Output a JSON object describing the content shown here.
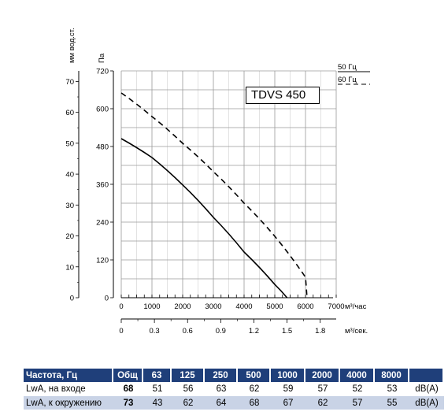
{
  "chart_data": {
    "type": "line",
    "title": "TDVS 450",
    "x_axis_primary": {
      "unit": "м³/час",
      "ticks": [
        "0",
        "1000",
        "2000",
        "3000",
        "4000",
        "5000",
        "6000",
        "7000"
      ],
      "range": [
        0,
        7000
      ]
    },
    "x_axis_secondary": {
      "unit": "м³/сек.",
      "ticks": [
        "0",
        "0.3",
        "0.6",
        "0.9",
        "1.2",
        "1.5",
        "1.8"
      ]
    },
    "y_axis_primary": {
      "unit": "Па",
      "ticks": [
        "0",
        "120",
        "240",
        "360",
        "480",
        "600",
        "720"
      ],
      "range": [
        0,
        720
      ]
    },
    "y_axis_secondary": {
      "unit": "мм вод.ст.",
      "ticks": [
        "0",
        "10",
        "20",
        "30",
        "40",
        "50",
        "60",
        "70"
      ]
    },
    "legend": [
      {
        "name": "50 Гц",
        "style": "solid"
      },
      {
        "name": "60 Гц",
        "style": "dashed"
      }
    ],
    "series": [
      {
        "name": "50 Гц",
        "style": "solid",
        "x": [
          0,
          1000,
          2000,
          3000,
          4000,
          5000,
          5400
        ],
        "y": [
          505,
          445,
          358,
          255,
          145,
          42,
          0
        ]
      },
      {
        "name": "60 Гц",
        "style": "dashed",
        "x": [
          0,
          1000,
          2000,
          3000,
          4000,
          5000,
          6000,
          6050
        ],
        "y": [
          650,
          575,
          490,
          400,
          300,
          195,
          65,
          0
        ]
      }
    ],
    "grid": true
  },
  "noise_table": {
    "header": [
      "Частота, Гц",
      "Общ",
      "63",
      "125",
      "250",
      "500",
      "1000",
      "2000",
      "4000",
      "8000",
      ""
    ],
    "rows": [
      {
        "label": "LwA, на входе",
        "total": "68",
        "values": [
          "51",
          "56",
          "63",
          "62",
          "59",
          "57",
          "52",
          "53"
        ],
        "unit": "dB(A)"
      },
      {
        "label": "LwA, к окружению",
        "total": "73",
        "values": [
          "43",
          "62",
          "64",
          "68",
          "67",
          "62",
          "57",
          "55"
        ],
        "unit": "dB(A)"
      }
    ]
  }
}
